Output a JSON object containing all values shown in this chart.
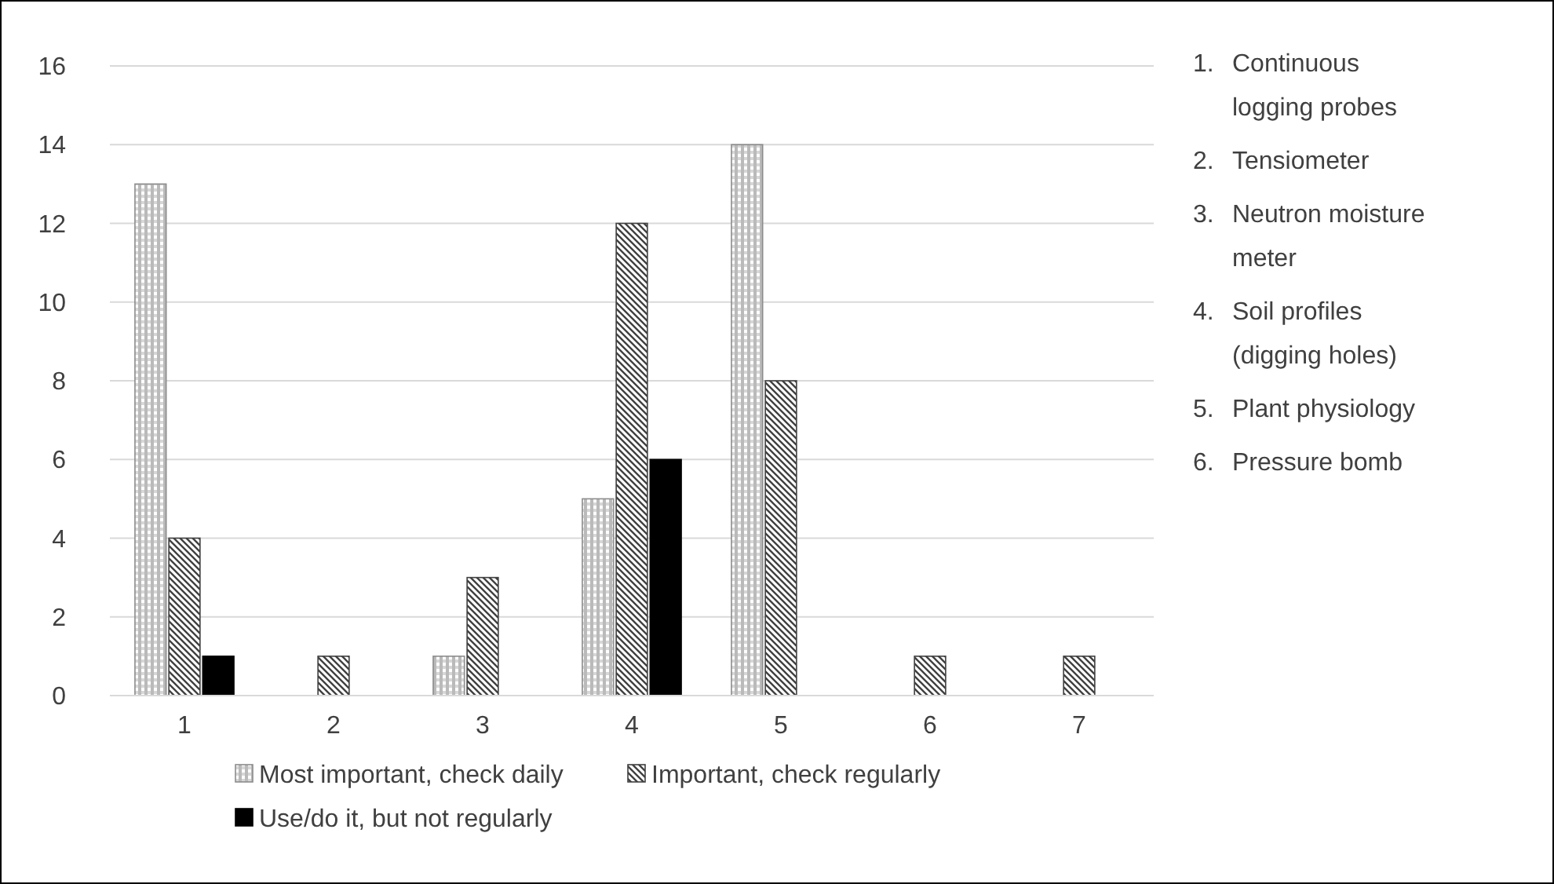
{
  "chart_data": {
    "type": "bar",
    "categories": [
      "1",
      "2",
      "3",
      "4",
      "5",
      "6",
      "7"
    ],
    "series": [
      {
        "name": "Most important, check daily",
        "color": "#8c8c8c",
        "values": [
          13,
          0,
          1,
          5,
          14,
          0,
          0
        ]
      },
      {
        "name": "Important, check regularly",
        "color": "#404040",
        "values": [
          4,
          1,
          3,
          12,
          8,
          1,
          1
        ]
      },
      {
        "name": "Use/do it, but not regularly",
        "color": "#000000",
        "values": [
          1,
          0,
          0,
          6,
          0,
          0,
          0
        ]
      }
    ],
    "ylim": [
      0,
      16
    ],
    "yticks": [
      0,
      2,
      4,
      6,
      8,
      10,
      12,
      14,
      16
    ],
    "grid": "y",
    "legend": "bottom",
    "annotations": [
      "1. Continuous logging probes",
      "2. Tensiometer",
      "3. Neutron moisture meter",
      "4. Soil profiles (digging holes)",
      "5. Plant physiology",
      "6. Pressure bomb"
    ]
  }
}
